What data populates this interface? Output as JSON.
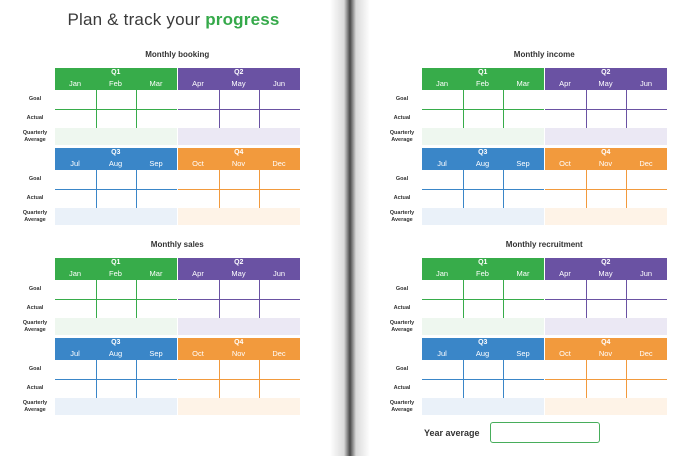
{
  "title": {
    "prefix": "Plan & track your ",
    "highlight": "progress"
  },
  "colors": {
    "q1": "#37ac4a",
    "q2": "#6a52a3",
    "q3": "#3a86c8",
    "q4": "#f29a3d"
  },
  "row_labels": {
    "goal": "Goal",
    "actual": "Actual",
    "quarterly_average": "Quarterly Average"
  },
  "blocks": [
    {
      "id": "booking",
      "title": "Monthly booking"
    },
    {
      "id": "income",
      "title": "Monthly income"
    },
    {
      "id": "sales",
      "title": "Monthly sales"
    },
    {
      "id": "recruitment",
      "title": "Monthly recruitment"
    }
  ],
  "quarters": [
    {
      "name": "Q1",
      "months": [
        "Jan",
        "Feb",
        "Mar"
      ]
    },
    {
      "name": "Q2",
      "months": [
        "Apr",
        "May",
        "Jun"
      ]
    },
    {
      "name": "Q3",
      "months": [
        "Jul",
        "Aug",
        "Sep"
      ]
    },
    {
      "name": "Q4",
      "months": [
        "Oct",
        "Nov",
        "Dec"
      ]
    }
  ],
  "year_average": {
    "label": "Year average",
    "value": ""
  }
}
